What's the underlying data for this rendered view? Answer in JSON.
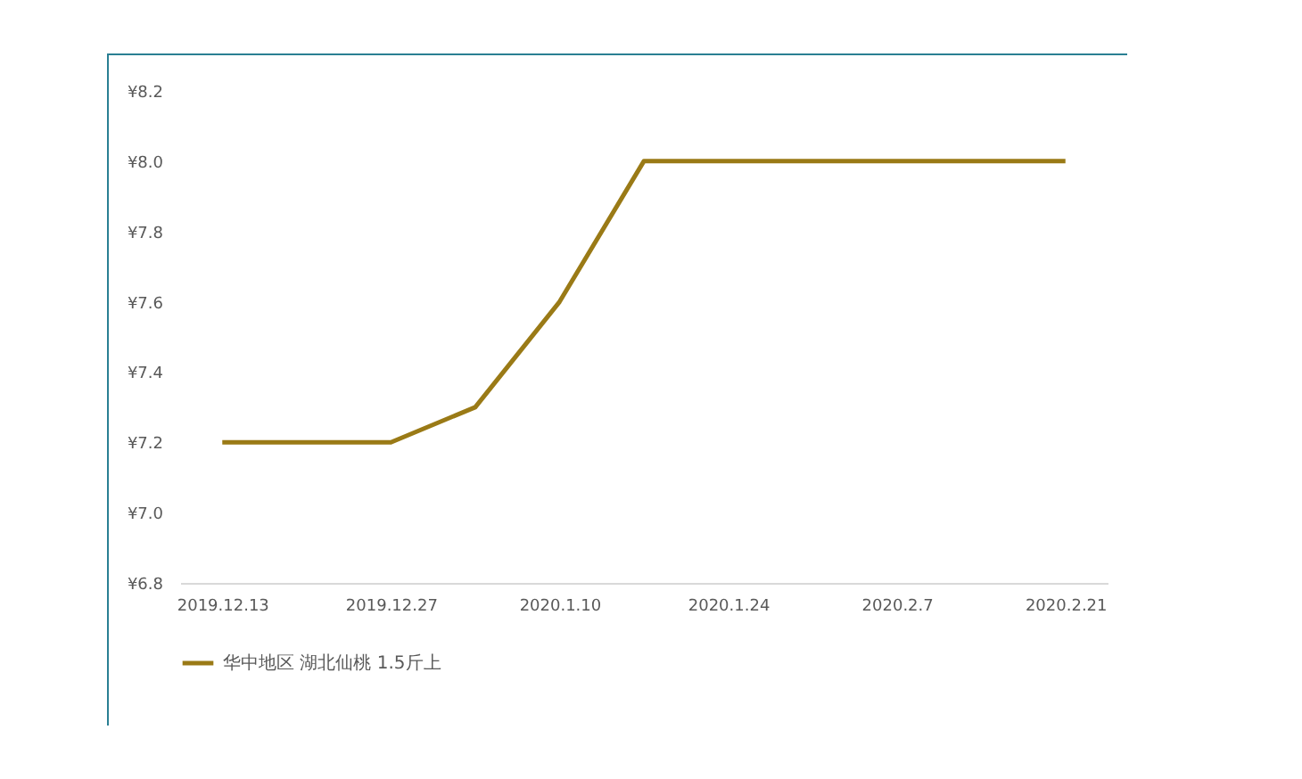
{
  "chart_data": {
    "type": "line",
    "categories": [
      "2019.12.13",
      null,
      "2019.12.27",
      null,
      "2020.1.10",
      null,
      "2020.1.24",
      null,
      "2020.2.7",
      null,
      "2020.2.21"
    ],
    "series": [
      {
        "name": "华中地区 湖北仙桃 1.5斤上",
        "color": "#9a7a16",
        "values": [
          7.2,
          7.2,
          7.2,
          7.3,
          7.6,
          8.0,
          8.0,
          8.0,
          8.0,
          8.0,
          8.0
        ]
      }
    ],
    "ylim": [
      6.8,
      8.2
    ],
    "yticks": [
      {
        "value": 6.8,
        "label": "¥6.8"
      },
      {
        "value": 7.0,
        "label": "¥7.0"
      },
      {
        "value": 7.2,
        "label": "¥7.2"
      },
      {
        "value": 7.4,
        "label": "¥7.4"
      },
      {
        "value": 7.6,
        "label": "¥7.6"
      },
      {
        "value": 7.8,
        "label": "¥7.8"
      },
      {
        "value": 8.0,
        "label": "¥8.0"
      },
      {
        "value": 8.2,
        "label": "¥8.2"
      }
    ],
    "grid": false,
    "legend": "bottom",
    "marker": "none",
    "line_style": "solid"
  }
}
